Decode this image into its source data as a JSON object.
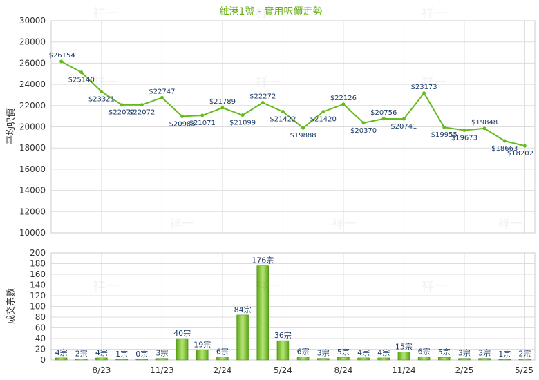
{
  "chart_data": [
    {
      "type": "line",
      "title": "維港1號 - 實用呎價走勢",
      "ylabel": "平均呎價",
      "ylim": [
        10000,
        30000
      ],
      "yticks": [
        10000,
        12000,
        14000,
        16000,
        18000,
        20000,
        22000,
        24000,
        26000,
        28000,
        30000
      ],
      "x": [
        0,
        1,
        2,
        3,
        4,
        5,
        6,
        7,
        8,
        9,
        10,
        11,
        12,
        13,
        14,
        15,
        16,
        17,
        18,
        19,
        20,
        21,
        22,
        23
      ],
      "series": [
        {
          "values": [
            26154,
            25140,
            23321,
            22072,
            22072,
            22747,
            20983,
            21071,
            21789,
            21099,
            22272,
            21422,
            19888,
            21420,
            22126,
            20370,
            20756,
            20741,
            23173,
            19955,
            19673,
            19848,
            18663,
            18202
          ],
          "labels": [
            "$26154",
            "$25140",
            "$23321",
            "$22072",
            "$22072",
            "$22747",
            "$20983",
            "$21071",
            "$21789",
            "$21099",
            "$22272",
            "$21422",
            "$19888",
            "$21420",
            "$22126",
            "$20370",
            "$20756",
            "$20741",
            "$23173",
            "$19955",
            "$19673",
            "$19848",
            "$18663",
            "$18202"
          ],
          "color": "#66bb1c"
        }
      ]
    },
    {
      "type": "bar",
      "ylabel": "成交宗數",
      "ylim": [
        0,
        200
      ],
      "yticks": [
        0,
        20,
        40,
        60,
        80,
        100,
        120,
        140,
        160,
        180,
        200
      ],
      "x_tick_labels": [
        "8/23",
        "11/23",
        "2/24",
        "5/24",
        "8/24",
        "11/24",
        "2/25",
        "5/25"
      ],
      "series": [
        {
          "values": [
            4,
            2,
            4,
            1,
            0,
            3,
            40,
            19,
            6,
            84,
            176,
            36,
            6,
            3,
            5,
            4,
            4,
            15,
            6,
            5,
            3,
            3,
            1,
            2
          ],
          "labels": [
            "4宗",
            "2宗",
            "4宗",
            "1宗",
            "0宗",
            "3宗",
            "40宗",
            "19宗",
            "6宗",
            "84宗",
            "176宗",
            "36宗",
            "6宗",
            "3宗",
            "5宗",
            "4宗",
            "4宗",
            "15宗",
            "6宗",
            "5宗",
            "3宗",
            "3宗",
            "1宗",
            "2宗"
          ],
          "color": "#66bb1c"
        }
      ]
    }
  ],
  "watermark": "祥一"
}
